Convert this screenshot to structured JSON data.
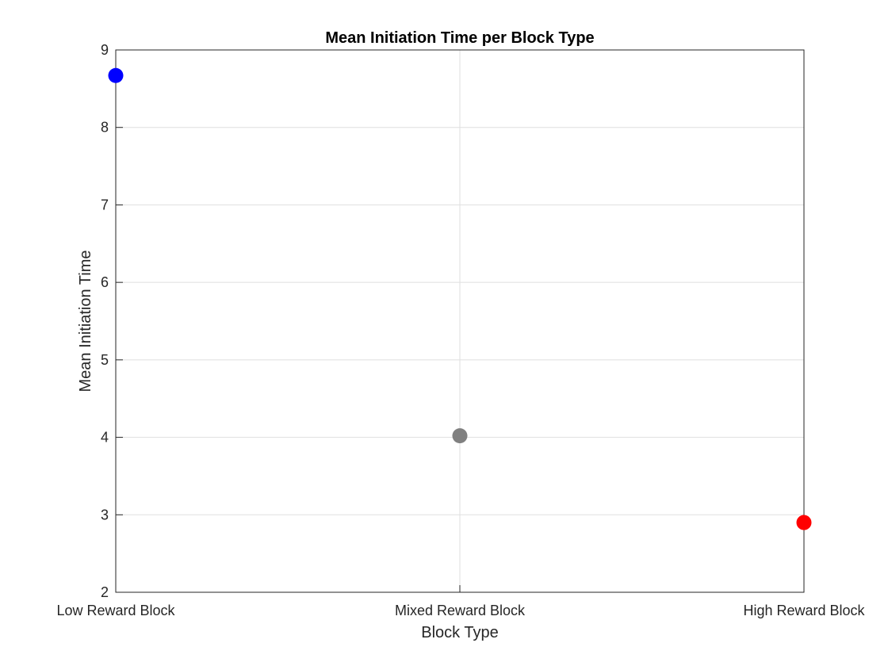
{
  "chart_data": {
    "type": "scatter",
    "title": "Mean Initiation Time per Block Type",
    "xlabel": "Block Type",
    "ylabel": "Mean Initiation Time",
    "categories": [
      "Low Reward Block",
      "Mixed Reward Block",
      "High Reward Block"
    ],
    "points": [
      {
        "category": "Low Reward Block",
        "value": 8.67,
        "color": "#0000ff"
      },
      {
        "category": "Mixed Reward Block",
        "value": 4.02,
        "color": "#808080"
      },
      {
        "category": "High Reward Block",
        "value": 2.9,
        "color": "#ff0000"
      }
    ],
    "ylim": [
      2,
      9
    ],
    "yticks": [
      2,
      3,
      4,
      5,
      6,
      7,
      8,
      9
    ],
    "grid": true,
    "legend": "none"
  }
}
